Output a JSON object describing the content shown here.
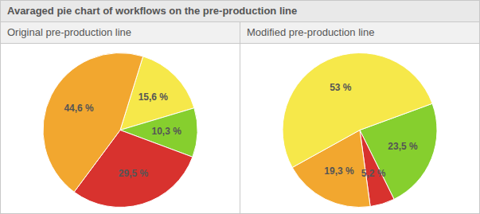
{
  "title": "Avaraged pie chart of workflows on the pre-production line",
  "chart_data": [
    {
      "type": "pie",
      "title": "Original pre-production line",
      "values": [
        15.6,
        10.3,
        29.5,
        44.6
      ],
      "value_labels": [
        "15,6 %",
        "10,3 %",
        "29,5 %",
        "44,6 %"
      ],
      "colors": [
        "#f6e84a",
        "#86cf2e",
        "#d8322e",
        "#f2a72f"
      ],
      "data_labels": true
    },
    {
      "type": "pie",
      "title": "Modified pre-production line",
      "values": [
        23.5,
        5.2,
        19.3,
        53
      ],
      "value_labels": [
        "23,5 %",
        "5,2 %",
        "19,3 %",
        "53 %"
      ],
      "colors": [
        "#86cf2e",
        "#d8322e",
        "#f2a72f",
        "#f6e84a"
      ],
      "data_labels": true
    }
  ]
}
